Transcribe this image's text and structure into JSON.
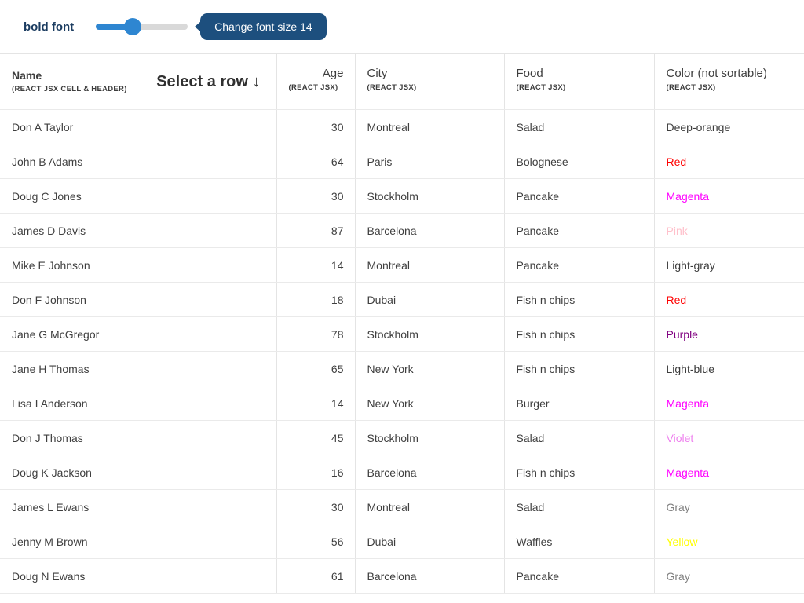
{
  "toolbar": {
    "bold_label": "bold font",
    "slider_value_percent": 40,
    "button_label": "Change font size 14"
  },
  "colors": {
    "accent_blue": "#2e86d1",
    "button_navy": "#1d4f7e",
    "label_navy": "#1b3c60",
    "default_text": "#3d3d3d",
    "border": "#e4e4e4"
  },
  "table": {
    "columns": [
      {
        "title": "Name",
        "subtitle": "(REACT JSX CELL & HEADER)",
        "extra": "Select a row ↓",
        "sortable": true
      },
      {
        "title": "Age",
        "subtitle": "(REACT JSX)",
        "sortable": true
      },
      {
        "title": "City",
        "subtitle": "(REACT JSX)",
        "sortable": true
      },
      {
        "title": "Food",
        "subtitle": "(REACT JSX)",
        "sortable": true
      },
      {
        "title": "Color (not sortable)",
        "subtitle": "(REACT JSX)",
        "sortable": false
      }
    ],
    "rows": [
      {
        "name": "Don A Taylor",
        "age": 30,
        "city": "Montreal",
        "food": "Salad",
        "color": "Deep-orange",
        "color_hex": "#3d3d3d"
      },
      {
        "name": "John B Adams",
        "age": 64,
        "city": "Paris",
        "food": "Bolognese",
        "color": "Red",
        "color_hex": "#ff0000"
      },
      {
        "name": "Doug C Jones",
        "age": 30,
        "city": "Stockholm",
        "food": "Pancake",
        "color": "Magenta",
        "color_hex": "#ff00ff"
      },
      {
        "name": "James D Davis",
        "age": 87,
        "city": "Barcelona",
        "food": "Pancake",
        "color": "Pink",
        "color_hex": "#ffc0cb"
      },
      {
        "name": "Mike E Johnson",
        "age": 14,
        "city": "Montreal",
        "food": "Pancake",
        "color": "Light-gray",
        "color_hex": "#3d3d3d"
      },
      {
        "name": "Don F Johnson",
        "age": 18,
        "city": "Dubai",
        "food": "Fish n chips",
        "color": "Red",
        "color_hex": "#ff0000"
      },
      {
        "name": "Jane G McGregor",
        "age": 78,
        "city": "Stockholm",
        "food": "Fish n chips",
        "color": "Purple",
        "color_hex": "#800080"
      },
      {
        "name": "Jane H Thomas",
        "age": 65,
        "city": "New York",
        "food": "Fish n chips",
        "color": "Light-blue",
        "color_hex": "#3d3d3d"
      },
      {
        "name": "Lisa I Anderson",
        "age": 14,
        "city": "New York",
        "food": "Burger",
        "color": "Magenta",
        "color_hex": "#ff00ff"
      },
      {
        "name": "Don J Thomas",
        "age": 45,
        "city": "Stockholm",
        "food": "Salad",
        "color": "Violet",
        "color_hex": "#ee82ee"
      },
      {
        "name": "Doug K Jackson",
        "age": 16,
        "city": "Barcelona",
        "food": "Fish n chips",
        "color": "Magenta",
        "color_hex": "#ff00ff"
      },
      {
        "name": "James L Ewans",
        "age": 30,
        "city": "Montreal",
        "food": "Salad",
        "color": "Gray",
        "color_hex": "#808080"
      },
      {
        "name": "Jenny M Brown",
        "age": 56,
        "city": "Dubai",
        "food": "Waffles",
        "color": "Yellow",
        "color_hex": "#ffff00"
      },
      {
        "name": "Doug N Ewans",
        "age": 61,
        "city": "Barcelona",
        "food": "Pancake",
        "color": "Gray",
        "color_hex": "#808080"
      }
    ]
  }
}
